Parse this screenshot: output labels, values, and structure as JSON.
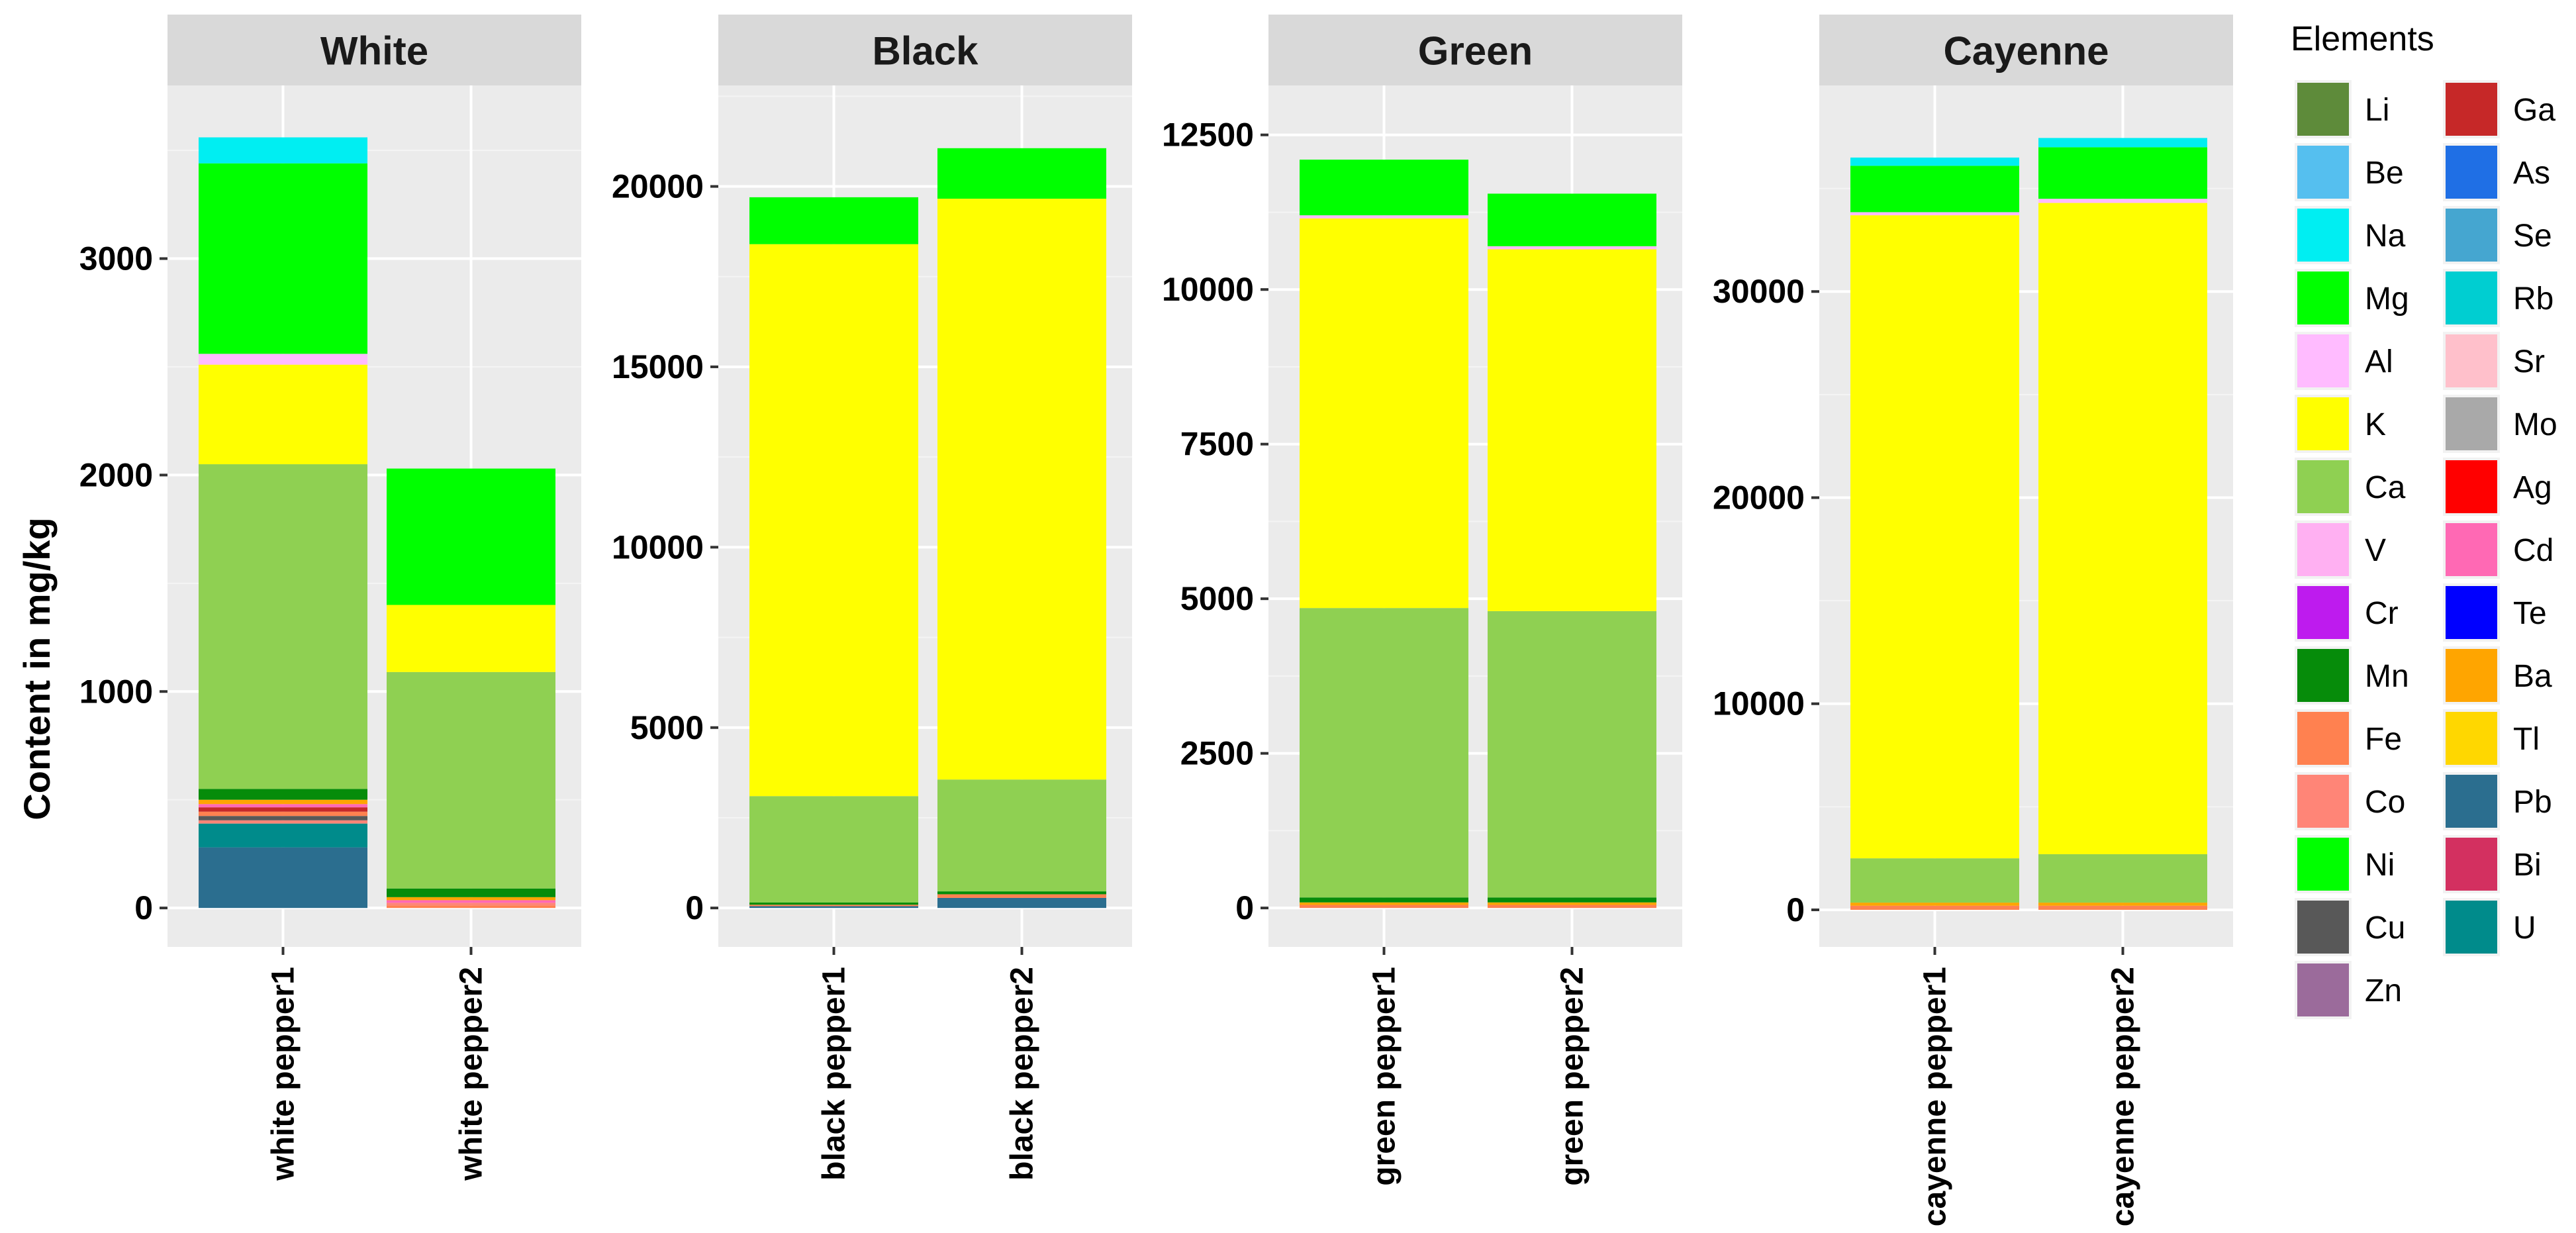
{
  "chart_data": {
    "type": "stacked-bar",
    "ylabel": "Content in mg/kg",
    "legend": {
      "title": "Elements",
      "position": "right",
      "items": [
        {
          "name": "Li",
          "color": "#5E8B3A"
        },
        {
          "name": "Be",
          "color": "#55BFEF"
        },
        {
          "name": "Na",
          "color": "#00EEF2"
        },
        {
          "name": "Mg",
          "color": "#00FF00"
        },
        {
          "name": "Al",
          "color": "#FFBBFF"
        },
        {
          "name": "K",
          "color": "#FFFF00"
        },
        {
          "name": "Ca",
          "color": "#8FD052"
        },
        {
          "name": "V",
          "color": "#FFB0F2"
        },
        {
          "name": "Cr",
          "color": "#BE1BEE"
        },
        {
          "name": "Mn",
          "color": "#068C0A"
        },
        {
          "name": "Fe",
          "color": "#FF8150"
        },
        {
          "name": "Co",
          "color": "#FF8577"
        },
        {
          "name": "Ni",
          "color": "#00FF00"
        },
        {
          "name": "Cu",
          "color": "#585858"
        },
        {
          "name": "Zn",
          "color": "#9B6B9B"
        },
        {
          "name": "Ga",
          "color": "#C62828"
        },
        {
          "name": "As",
          "color": "#1F6FE5"
        },
        {
          "name": "Se",
          "color": "#45A6D0"
        },
        {
          "name": "Rb",
          "color": "#00CED1"
        },
        {
          "name": "Sr",
          "color": "#FFC0CB"
        },
        {
          "name": "Mo",
          "color": "#A9A9A9"
        },
        {
          "name": "Ag",
          "color": "#FF0000"
        },
        {
          "name": "Cd",
          "color": "#FF69B4"
        },
        {
          "name": "Te",
          "color": "#0000FF"
        },
        {
          "name": "Ba",
          "color": "#FFA500"
        },
        {
          "name": "Tl",
          "color": "#FFD700"
        },
        {
          "name": "Pb",
          "color": "#2B6E8F"
        },
        {
          "name": "Bi",
          "color": "#D33060"
        },
        {
          "name": "U",
          "color": "#008B8B"
        }
      ]
    },
    "panels": [
      {
        "title": "White",
        "ylim": [
          -180,
          3800
        ],
        "yticks": [
          0,
          1000,
          2000,
          3000
        ],
        "yticklabels": [
          "0",
          "1000",
          "2000",
          "3000"
        ],
        "categories": [
          "white pepper1",
          "white pepper2"
        ],
        "segments": [
          [
            {
              "element": "Pb",
              "value": 280
            },
            {
              "element": "U",
              "value": 110
            },
            {
              "element": "Co",
              "value": 15
            },
            {
              "element": "Cu",
              "value": 20
            },
            {
              "element": "Fe",
              "value": 20
            },
            {
              "element": "Ga",
              "value": 20
            },
            {
              "element": "Cd",
              "value": 15
            },
            {
              "element": "Ba",
              "value": 20
            },
            {
              "element": "Mn",
              "value": 50
            },
            {
              "element": "Ca",
              "value": 1500
            },
            {
              "element": "K",
              "value": 460
            },
            {
              "element": "Al",
              "value": 50
            },
            {
              "element": "Mg",
              "value": 880
            },
            {
              "element": "Na",
              "value": 120
            }
          ],
          [
            {
              "element": "Fe",
              "value": 12
            },
            {
              "element": "Co",
              "value": 12
            },
            {
              "element": "Cd",
              "value": 12
            },
            {
              "element": "Ba",
              "value": 14
            },
            {
              "element": "Mn",
              "value": 40
            },
            {
              "element": "Ca",
              "value": 1000
            },
            {
              "element": "K",
              "value": 310
            },
            {
              "element": "Mg",
              "value": 630
            }
          ]
        ]
      },
      {
        "title": "Black",
        "ylim": [
          -1080,
          22800
        ],
        "yticks": [
          0,
          5000,
          10000,
          15000,
          20000
        ],
        "yticklabels": [
          "0",
          "5000",
          "10000",
          "15000",
          "20000"
        ],
        "categories": [
          "black pepper1",
          "black pepper2"
        ],
        "segments": [
          [
            {
              "element": "Pb",
              "value": 50
            },
            {
              "element": "Fe",
              "value": 40
            },
            {
              "element": "Mn",
              "value": 60
            },
            {
              "element": "Ca",
              "value": 2950
            },
            {
              "element": "K",
              "value": 15300
            },
            {
              "element": "Mg",
              "value": 1300
            }
          ],
          [
            {
              "element": "Pb",
              "value": 280
            },
            {
              "element": "Fe",
              "value": 100
            },
            {
              "element": "Mn",
              "value": 80
            },
            {
              "element": "Ca",
              "value": 3100
            },
            {
              "element": "K",
              "value": 16100
            },
            {
              "element": "Mg",
              "value": 1400
            }
          ]
        ]
      },
      {
        "title": "Green",
        "ylim": [
          -630,
          13300
        ],
        "yticks": [
          0,
          2500,
          5000,
          7500,
          10000,
          12500
        ],
        "yticklabels": [
          "0",
          "2500",
          "5000",
          "7500",
          "10000",
          "12500"
        ],
        "categories": [
          "green pepper1",
          "green pepper2"
        ],
        "segments": [
          [
            {
              "element": "Fe",
              "value": 50
            },
            {
              "element": "Ba",
              "value": 40
            },
            {
              "element": "Mn",
              "value": 80
            },
            {
              "element": "Ca",
              "value": 4680
            },
            {
              "element": "K",
              "value": 6300
            },
            {
              "element": "Al",
              "value": 50
            },
            {
              "element": "Mg",
              "value": 900
            }
          ],
          [
            {
              "element": "Fe",
              "value": 50
            },
            {
              "element": "Ba",
              "value": 40
            },
            {
              "element": "Mn",
              "value": 80
            },
            {
              "element": "Ca",
              "value": 4630
            },
            {
              "element": "K",
              "value": 5850
            },
            {
              "element": "Al",
              "value": 50
            },
            {
              "element": "Mg",
              "value": 850
            }
          ]
        ]
      },
      {
        "title": "Cayenne",
        "ylim": [
          -1800,
          40000
        ],
        "yticks": [
          0,
          10000,
          20000,
          30000
        ],
        "yticklabels": [
          "0",
          "10000",
          "20000",
          "30000"
        ],
        "categories": [
          "cayenne pepper1",
          "cayenne pepper2"
        ],
        "segments": [
          [
            {
              "element": "Fe",
              "value": 200
            },
            {
              "element": "Ba",
              "value": 150
            },
            {
              "element": "Ca",
              "value": 2150
            },
            {
              "element": "K",
              "value": 31200
            },
            {
              "element": "Al",
              "value": 150
            },
            {
              "element": "Mg",
              "value": 2250
            },
            {
              "element": "Na",
              "value": 400
            }
          ],
          [
            {
              "element": "Fe",
              "value": 200
            },
            {
              "element": "Ba",
              "value": 150
            },
            {
              "element": "Ca",
              "value": 2350
            },
            {
              "element": "K",
              "value": 31600
            },
            {
              "element": "Al",
              "value": 200
            },
            {
              "element": "Mg",
              "value": 2500
            },
            {
              "element": "Na",
              "value": 450
            }
          ]
        ]
      }
    ]
  }
}
